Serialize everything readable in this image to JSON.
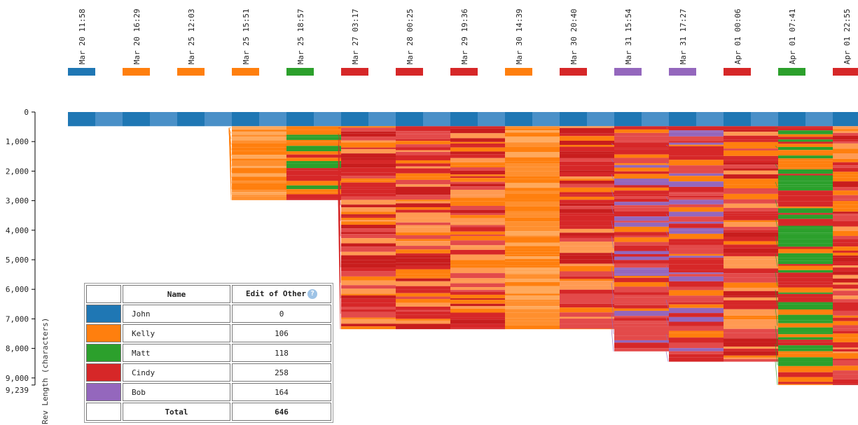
{
  "chart_data": {
    "type": "area",
    "title": "",
    "ylabel": "Rev Length (characters)",
    "ylim": [
      0,
      9239
    ],
    "y_ticks": [
      "0",
      "1,000",
      "2,000",
      "3,000",
      "4,000",
      "5,000",
      "6,000",
      "7,000",
      "8,000",
      "9,000"
    ],
    "y_max_label": "9,239",
    "revisions": [
      {
        "timestamp": "Mar 20 11:58",
        "author": "John",
        "length": 540
      },
      {
        "timestamp": "Mar 20 16:29",
        "author": "Kelly",
        "length": 540
      },
      {
        "timestamp": "Mar 25 12:03",
        "author": "Kelly",
        "length": 540
      },
      {
        "timestamp": "Mar 25 15:51",
        "author": "Kelly",
        "length": 2980
      },
      {
        "timestamp": "Mar 25 18:57",
        "author": "Matt",
        "length": 2980
      },
      {
        "timestamp": "Mar 27 03:17",
        "author": "Cindy",
        "length": 7350
      },
      {
        "timestamp": "Mar 28 00:25",
        "author": "Cindy",
        "length": 7350
      },
      {
        "timestamp": "Mar 29 19:36",
        "author": "Cindy",
        "length": 7350
      },
      {
        "timestamp": "Mar 30 14:39",
        "author": "Kelly",
        "length": 7350
      },
      {
        "timestamp": "Mar 30 20:40",
        "author": "Cindy",
        "length": 7350
      },
      {
        "timestamp": "Mar 31 15:54",
        "author": "Bob",
        "length": 8100
      },
      {
        "timestamp": "Mar 31 17:27",
        "author": "Bob",
        "length": 8450
      },
      {
        "timestamp": "Apr 01 00:06",
        "author": "Cindy",
        "length": 8450
      },
      {
        "timestamp": "Apr 01 07:41",
        "author": "Matt",
        "length": 9239
      },
      {
        "timestamp": "Apr 01 22:55",
        "author": "Cindy",
        "length": 9239
      }
    ]
  },
  "authors": [
    {
      "name": "John",
      "color": "#1f77b4",
      "edit_of_other": "0"
    },
    {
      "name": "Kelly",
      "color": "#ff7f0e",
      "edit_of_other": "106"
    },
    {
      "name": "Matt",
      "color": "#2ca02c",
      "edit_of_other": "118"
    },
    {
      "name": "Cindy",
      "color": "#d62728",
      "edit_of_other": "258"
    },
    {
      "name": "Bob",
      "color": "#9467bd",
      "edit_of_other": "164"
    }
  ],
  "table": {
    "name_header": "Name",
    "edit_header": "Edit of Other",
    "help_glyph": "?",
    "total_label": "Total",
    "total_value": "646"
  }
}
